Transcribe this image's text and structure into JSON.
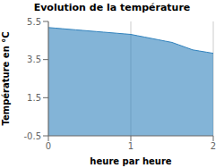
{
  "chart_data": {
    "type": "area",
    "title": "Evolution de la température",
    "xlabel": "heure par heure",
    "ylabel": "Température en °C",
    "x": [
      0.0,
      0.0833,
      0.1667,
      0.25,
      0.3333,
      0.4167,
      0.5,
      0.5833,
      0.6667,
      0.75,
      0.8333,
      0.9167,
      1.0,
      1.0833,
      1.1667,
      1.25,
      1.3333,
      1.4167,
      1.5,
      1.5833,
      1.6667,
      1.75,
      1.8333,
      1.9167,
      2.0
    ],
    "values": [
      5.18,
      5.15,
      5.12,
      5.09,
      5.06,
      5.03,
      5.0,
      4.97,
      4.94,
      4.91,
      4.88,
      4.85,
      4.82,
      4.75,
      4.68,
      4.61,
      4.54,
      4.47,
      4.4,
      4.27,
      4.14,
      4.01,
      3.95,
      3.89,
      3.83
    ],
    "xlim": [
      0,
      2
    ],
    "ylim": [
      -0.5,
      5.5
    ],
    "xticks": [
      0,
      1,
      2
    ],
    "yticks": [
      -0.5,
      1.5,
      3.5,
      5.5
    ],
    "grid": "x"
  }
}
